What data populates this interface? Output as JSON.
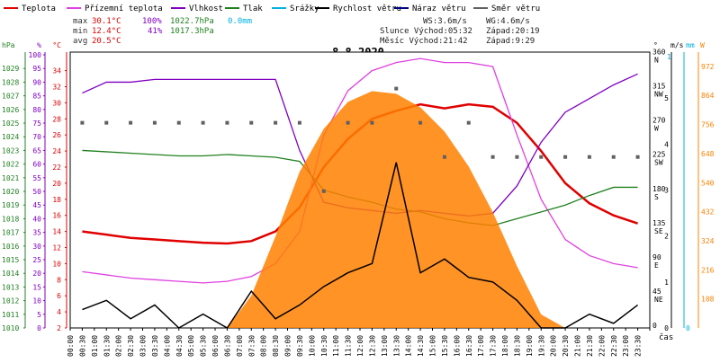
{
  "legend": [
    {
      "label": "Teplota",
      "color": "#e00000"
    },
    {
      "label": "Přízemní teplota",
      "color": "#e040e0"
    },
    {
      "label": "Vlhkost",
      "color": "#8000c0"
    },
    {
      "label": "Tlak",
      "color": "#208020"
    },
    {
      "label": "Srážky",
      "color": "#00b0e0"
    },
    {
      "label": "Rychlost větru",
      "color": "#000000"
    },
    {
      "label": "Náraz větru",
      "color": "#000080"
    },
    {
      "label": "Směr větru",
      "color": "#606060"
    }
  ],
  "stats": {
    "max_label": "max",
    "min_label": "min",
    "avg_label": "avg",
    "max_temp": "30.1°C",
    "max_hum": "100%",
    "max_press": "1022.7hPa",
    "max_rain": "0.0mm",
    "min_temp": "12.4°C",
    "min_hum": "41%",
    "min_press": "1017.3hPa",
    "avg_temp": "20.5°C"
  },
  "info": {
    "ws": "WS:3.6m/s",
    "wg": "WG:4.6m/s",
    "sun_rise": "Slunce Východ:05:32",
    "sun_set": "Západ:20:19",
    "moon_rise": "Měsíc Východ:21:42",
    "moon_set": "Západ:9:29"
  },
  "chart_data": {
    "type": "line",
    "title": "8.8.2020",
    "x": [
      "00:00",
      "01:00",
      "02:00",
      "03:00",
      "04:00",
      "05:00",
      "06:00",
      "07:00",
      "08:00",
      "09:00",
      "10:00",
      "11:00",
      "12:00",
      "13:00",
      "14:00",
      "15:00",
      "16:00",
      "17:00",
      "18:00",
      "19:00",
      "20:00",
      "21:00",
      "22:00",
      "23:00"
    ],
    "xticks": [
      "00:00",
      "00:30",
      "01:00",
      "01:30",
      "02:00",
      "02:30",
      "03:00",
      "03:30",
      "04:00",
      "04:30",
      "05:00",
      "05:30",
      "06:00",
      "06:30",
      "07:00",
      "07:30",
      "08:00",
      "08:30",
      "09:00",
      "09:30",
      "10:00",
      "10:30",
      "11:00",
      "11:30",
      "12:00",
      "12:30",
      "13:00",
      "13:30",
      "14:00",
      "14:30",
      "15:00",
      "15:30",
      "16:00",
      "16:30",
      "17:00",
      "17:30",
      "18:00",
      "18:30",
      "19:00",
      "19:30",
      "20:00",
      "20:30",
      "21:00",
      "21:30",
      "22:00",
      "22:30",
      "23:00",
      "23:30"
    ],
    "xlabel": "čas",
    "axes": {
      "hpa": {
        "label": "hPa",
        "ticks": [
          1010,
          1011,
          1012,
          1013,
          1014,
          1015,
          1016,
          1017,
          1018,
          1019,
          1020,
          1021,
          1022,
          1023,
          1024,
          1025,
          1026,
          1027,
          1028,
          1029
        ],
        "range": [
          1010,
          1030.2
        ],
        "color": "#208020"
      },
      "percent": {
        "label": "%",
        "ticks": [
          0,
          5,
          10,
          15,
          20,
          25,
          30,
          35,
          40,
          45,
          50,
          55,
          60,
          65,
          70,
          75,
          80,
          85,
          90,
          95,
          100
        ],
        "range": [
          0,
          101
        ],
        "color": "#8000c0"
      },
      "celsius": {
        "label": "°C",
        "ticks": [
          2,
          4,
          6,
          8,
          10,
          12,
          14,
          16,
          18,
          20,
          22,
          24,
          26,
          28,
          30,
          32,
          34
        ],
        "range": [
          2,
          36.3
        ],
        "color": "#e00000"
      },
      "direction": {
        "label": "°",
        "ticks": [
          "0",
          "45 NE",
          "90 E",
          "135 SE",
          "180 S",
          "225 SW",
          "270 W",
          "315 NW",
          "360 N"
        ],
        "range": [
          0,
          363
        ]
      },
      "wind": {
        "label": "m/s",
        "ticks": [
          0,
          1,
          2,
          3,
          4,
          5
        ],
        "range": [
          0,
          6
        ],
        "extra_tick": "1"
      },
      "rain": {
        "label": "mm",
        "ticks": [
          0
        ]
      },
      "radiation": {
        "label": "W",
        "ticks": [
          108,
          216,
          324,
          432,
          540,
          648,
          756,
          864,
          972
        ],
        "range": [
          0,
          1025
        ],
        "color": "#ff8000"
      }
    },
    "series": [
      {
        "name": "Teplota",
        "axis": "celsius",
        "color": "#e00000",
        "values": [
          14.0,
          13.6,
          13.2,
          13.0,
          12.8,
          12.6,
          12.5,
          12.8,
          14.0,
          17.0,
          22.0,
          25.5,
          28.0,
          29.0,
          29.8,
          29.3,
          29.8,
          29.5,
          27.5,
          24.0,
          20.0,
          17.5,
          16.0,
          15.0
        ]
      },
      {
        "name": "Přízemní teplota",
        "axis": "celsius",
        "color": "#e040e0",
        "values": [
          9.0,
          8.6,
          8.2,
          8.0,
          7.8,
          7.6,
          7.8,
          8.4,
          10.0,
          14.0,
          26.0,
          31.5,
          34.0,
          35.0,
          35.5,
          35.0,
          35.0,
          34.5,
          26.0,
          18.0,
          13.0,
          11.0,
          10.0,
          9.5
        ]
      },
      {
        "name": "Vlhkost",
        "axis": "percent",
        "color": "#8000c0",
        "values": [
          86,
          90,
          90,
          91,
          91,
          91,
          91,
          91,
          91,
          65,
          46,
          44,
          43,
          42,
          43,
          42,
          41,
          42,
          52,
          68,
          79,
          84,
          89,
          93
        ]
      },
      {
        "name": "Tlak",
        "axis": "hpa",
        "color": "#208020",
        "values": [
          1023.0,
          1022.9,
          1022.8,
          1022.7,
          1022.6,
          1022.6,
          1022.7,
          1022.6,
          1022.5,
          1022.2,
          1020.1,
          1019.6,
          1019.2,
          1018.7,
          1018.5,
          1018.0,
          1017.7,
          1017.5,
          1018.0,
          1018.5,
          1019.0,
          1019.7,
          1020.3,
          1020.3
        ]
      },
      {
        "name": "Solar",
        "axis": "radiation",
        "color": "#ff8000",
        "values": [
          0,
          0,
          0,
          0,
          0,
          0,
          0,
          120,
          340,
          580,
          740,
          840,
          880,
          870,
          820,
          730,
          600,
          430,
          230,
          50,
          0,
          0,
          0,
          0
        ]
      },
      {
        "name": "Rychlost větru",
        "axis": "wind",
        "color": "#000000",
        "values": [
          0.4,
          0.6,
          0.2,
          0.5,
          0.0,
          0.3,
          0.0,
          0.8,
          0.2,
          0.5,
          0.9,
          1.2,
          1.4,
          3.6,
          1.2,
          1.5,
          1.1,
          1.0,
          0.6,
          0.0,
          0.0,
          0.3,
          0.1,
          0.5
        ]
      },
      {
        "name": "Směr větru",
        "axis": "direction",
        "color": "#606060",
        "values": [
          270,
          270,
          270,
          270,
          270,
          270,
          270,
          270,
          270,
          270,
          180,
          270,
          270,
          315,
          270,
          225,
          270,
          225,
          225,
          225,
          225,
          225,
          225,
          225
        ]
      }
    ]
  }
}
